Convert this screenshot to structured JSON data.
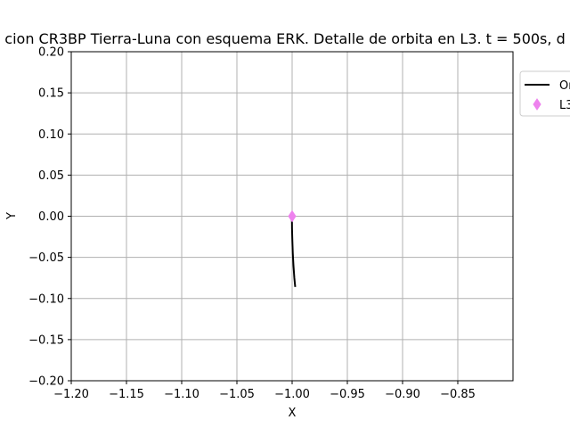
{
  "chart_data": {
    "type": "line",
    "title": "cion CR3BP Tierra-Luna con esquema ERK. Detalle de orbita en L3. t = 500s, d",
    "xlabel": "X",
    "ylabel": "Y",
    "xlim": [
      -1.2,
      -0.8
    ],
    "ylim": [
      -0.2,
      0.2
    ],
    "xticks": [
      -1.2,
      -1.15,
      -1.1,
      -1.05,
      -1.0,
      -0.95,
      -0.9,
      -0.85
    ],
    "xtick_labels": [
      "−1.20",
      "−1.15",
      "−1.10",
      "−1.05",
      "−1.00",
      "−0.95",
      "−0.90",
      "−0.85"
    ],
    "yticks": [
      -0.2,
      -0.15,
      -0.1,
      -0.05,
      0.0,
      0.05,
      0.1,
      0.15,
      0.2
    ],
    "ytick_labels": [
      "−0.20",
      "−0.15",
      "−0.10",
      "−0.05",
      "0.00",
      "0.05",
      "0.10",
      "0.15",
      "0.20"
    ],
    "grid": true,
    "legend_position": "outside top-right (clipped)",
    "series": [
      {
        "name": "Or",
        "kind": "line",
        "color": "#000000",
        "x": [
          -1.0002,
          -1.0001,
          -0.9998,
          -0.9994,
          -0.9988,
          -0.998,
          -0.9972
        ],
        "y": [
          0.0,
          -0.015,
          -0.03,
          -0.045,
          -0.06,
          -0.075,
          -0.086
        ]
      },
      {
        "name": "L3",
        "kind": "marker",
        "marker": "thin_diamond",
        "color": "#ee82ee",
        "x": [
          -1.0
        ],
        "y": [
          0.0
        ]
      }
    ]
  }
}
